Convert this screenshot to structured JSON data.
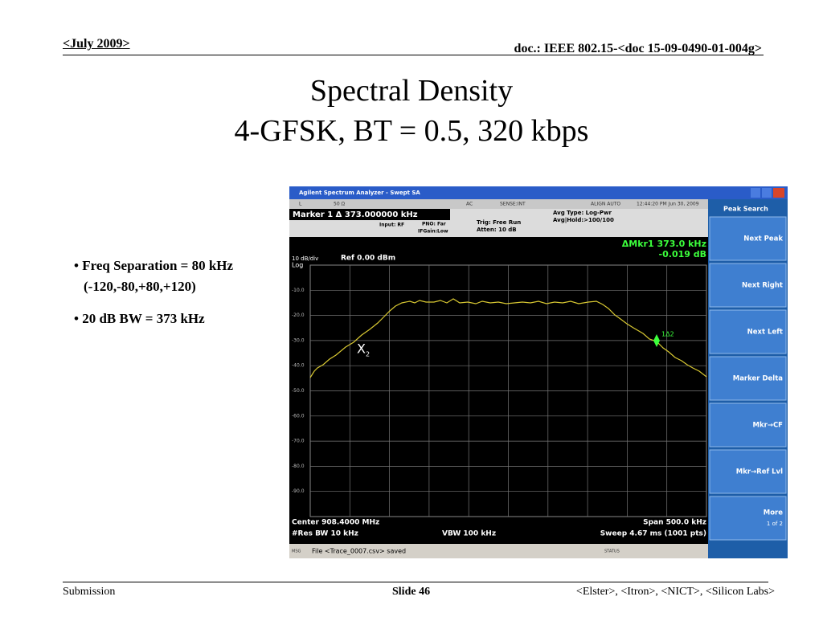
{
  "header": {
    "date": "<July 2009>",
    "doc": "doc.: IEEE 802.15-<doc 15-09-0490-01-004g>"
  },
  "title": [
    "Spectral Density",
    "4-GFSK, BT = 0.5, 320 kbps"
  ],
  "bullets": [
    "Freq Separation = 80 kHz (-120,-80,+80,+120)",
    "20 dB BW = 373 kHz"
  ],
  "analyzer": {
    "window_title": "Agilent Spectrum Analyzer - Swept SA",
    "status_bar": [
      "L",
      "50 Ω",
      "AC",
      "SENSE:INT",
      "ALIGN AUTO",
      "12:44:20 PM Jun 30, 2009"
    ],
    "marker_readout": "Marker 1 Δ  373.000000 kHz",
    "settings": [
      "Input: RF",
      "PNO: Far",
      "IFGain:Low",
      "Trig: Free Run",
      "Atten: 10 dB",
      "Avg Type: Log-Pwr",
      "Avg|Hold:>100/100"
    ],
    "delta_marker": [
      "ΔMkr1 373.0 kHz",
      "-0.019 dB"
    ],
    "scale": [
      "10 dB/div",
      "Log"
    ],
    "ref_level": "Ref 0.00 dBm",
    "grid_labels": [
      "-10.0",
      "-20.0",
      "-30.0",
      "-40.0",
      "-50.0",
      "-60.0",
      "-70.0",
      "-80.0",
      "-90.0"
    ],
    "marker_labels": [
      "X",
      "2",
      "1Δ2"
    ],
    "footer": [
      "Center 908.4000 MHz",
      "#Res BW 10 kHz",
      "VBW 100 kHz",
      "Span 500.0 kHz",
      "Sweep 4.67 ms (1001 pts)"
    ],
    "message": [
      "MSG",
      "File <Trace_0007.csv> saved",
      "STATUS"
    ],
    "softkeys": {
      "title": "Peak Search",
      "keys": [
        "Next Peak",
        "Next Right",
        "Next Left",
        "Marker Delta",
        "Mkr→CF",
        "Mkr→Ref Lvl",
        "More"
      ],
      "page": "1 of 2"
    }
  },
  "footer": {
    "left": "Submission",
    "center": "Slide 46",
    "right": "<Elster>, <Itron>, <NICT>, <Silicon Labs>"
  }
}
